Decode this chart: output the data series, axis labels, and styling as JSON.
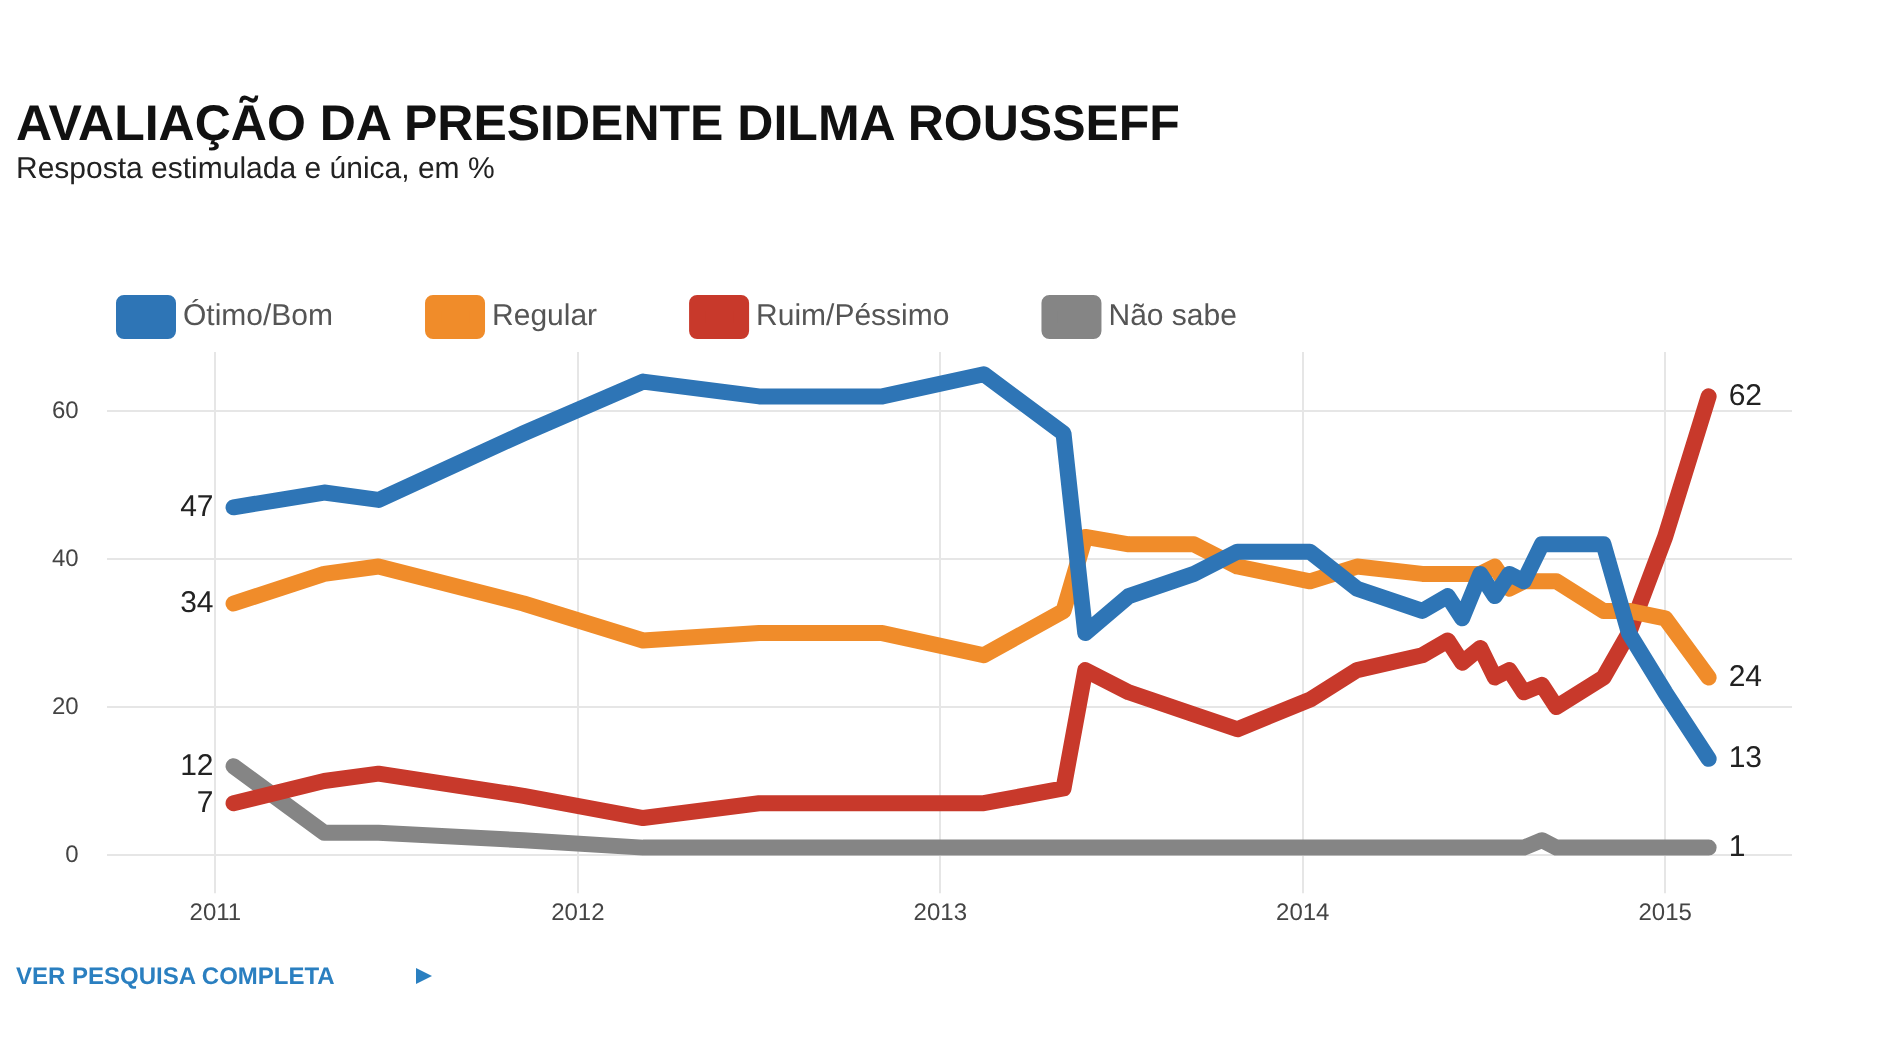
{
  "chart_data": {
    "type": "line",
    "title": "AVALIAÇÃO DA PRESIDENTE DILMA ROUSSEFF",
    "subtitle": "Resposta estimulada e única, em %",
    "annotations": [
      "VER PESQUISA COMPLETA"
    ],
    "x": [
      2011.05,
      2011.3,
      2011.45,
      2011.85,
      2012.18,
      2012.5,
      2012.84,
      2013.12,
      2013.34,
      2013.4,
      2013.52,
      2013.7,
      2013.82,
      2014.02,
      2014.15,
      2014.33,
      2014.4,
      2014.44,
      2014.49,
      2014.53,
      2014.57,
      2014.61,
      2014.66,
      2014.7,
      2014.83,
      2014.9,
      2015.0,
      2015.12
    ],
    "series": [
      {
        "name": "Ótimo/Bom",
        "color": "#2e75b6",
        "values": [
          47,
          49,
          48,
          57,
          64,
          62,
          62,
          65,
          57,
          30,
          35,
          38,
          41,
          41,
          36,
          33,
          35,
          32,
          38,
          35,
          38,
          37,
          42,
          42,
          42,
          30,
          22,
          13
        ],
        "value_labels": [
          "47",
          null,
          null,
          null,
          null,
          null,
          null,
          null,
          null,
          null,
          null,
          null,
          null,
          null,
          null,
          null,
          null,
          null,
          null,
          null,
          null,
          null,
          null,
          null,
          null,
          null,
          null,
          "13"
        ]
      },
      {
        "name": "Regular",
        "color": "#f08c2a",
        "values": [
          34,
          38,
          39,
          34,
          29,
          30,
          30,
          27,
          33,
          43,
          42,
          42,
          39,
          37,
          39,
          38,
          38,
          38,
          38,
          39,
          36,
          37,
          37,
          37,
          33,
          33,
          32,
          24
        ],
        "value_labels": [
          "34",
          null,
          null,
          null,
          null,
          null,
          null,
          null,
          null,
          null,
          null,
          null,
          null,
          null,
          null,
          null,
          null,
          null,
          null,
          null,
          null,
          null,
          null,
          null,
          null,
          null,
          null,
          "24"
        ]
      },
      {
        "name": "Ruim/Péssimo",
        "color": "#c8392b",
        "values": [
          7,
          10,
          11,
          8,
          5,
          7,
          7,
          7,
          9,
          25,
          22,
          19,
          17,
          21,
          25,
          27,
          29,
          26,
          28,
          24,
          25,
          22,
          23,
          20,
          24,
          30,
          43,
          62
        ],
        "value_labels": [
          "7",
          null,
          null,
          null,
          null,
          null,
          null,
          null,
          null,
          null,
          null,
          null,
          null,
          null,
          null,
          null,
          null,
          null,
          null,
          null,
          null,
          null,
          null,
          null,
          null,
          null,
          null,
          "62"
        ]
      },
      {
        "name": "Não sabe",
        "color": "#858585",
        "values": [
          12,
          3,
          3,
          2,
          1,
          1,
          1,
          1,
          1,
          1,
          1,
          1,
          1,
          1,
          1,
          1,
          1,
          1,
          1,
          1,
          1,
          1,
          2,
          1,
          1,
          1,
          1,
          1
        ],
        "value_labels": [
          "12",
          null,
          null,
          null,
          null,
          null,
          null,
          null,
          null,
          null,
          null,
          null,
          null,
          null,
          null,
          null,
          null,
          null,
          null,
          null,
          null,
          null,
          null,
          null,
          null,
          null,
          null,
          "1"
        ]
      }
    ],
    "xlim": [
      2010.7,
      2015.35
    ],
    "xticks": [
      2011,
      2012,
      2013,
      2014,
      2015
    ],
    "ylim": [
      -3,
      68
    ],
    "yticks": [
      0,
      20,
      40,
      60
    ],
    "grid": true,
    "legend": "top left",
    "marker": "none",
    "line_style": "solid"
  }
}
